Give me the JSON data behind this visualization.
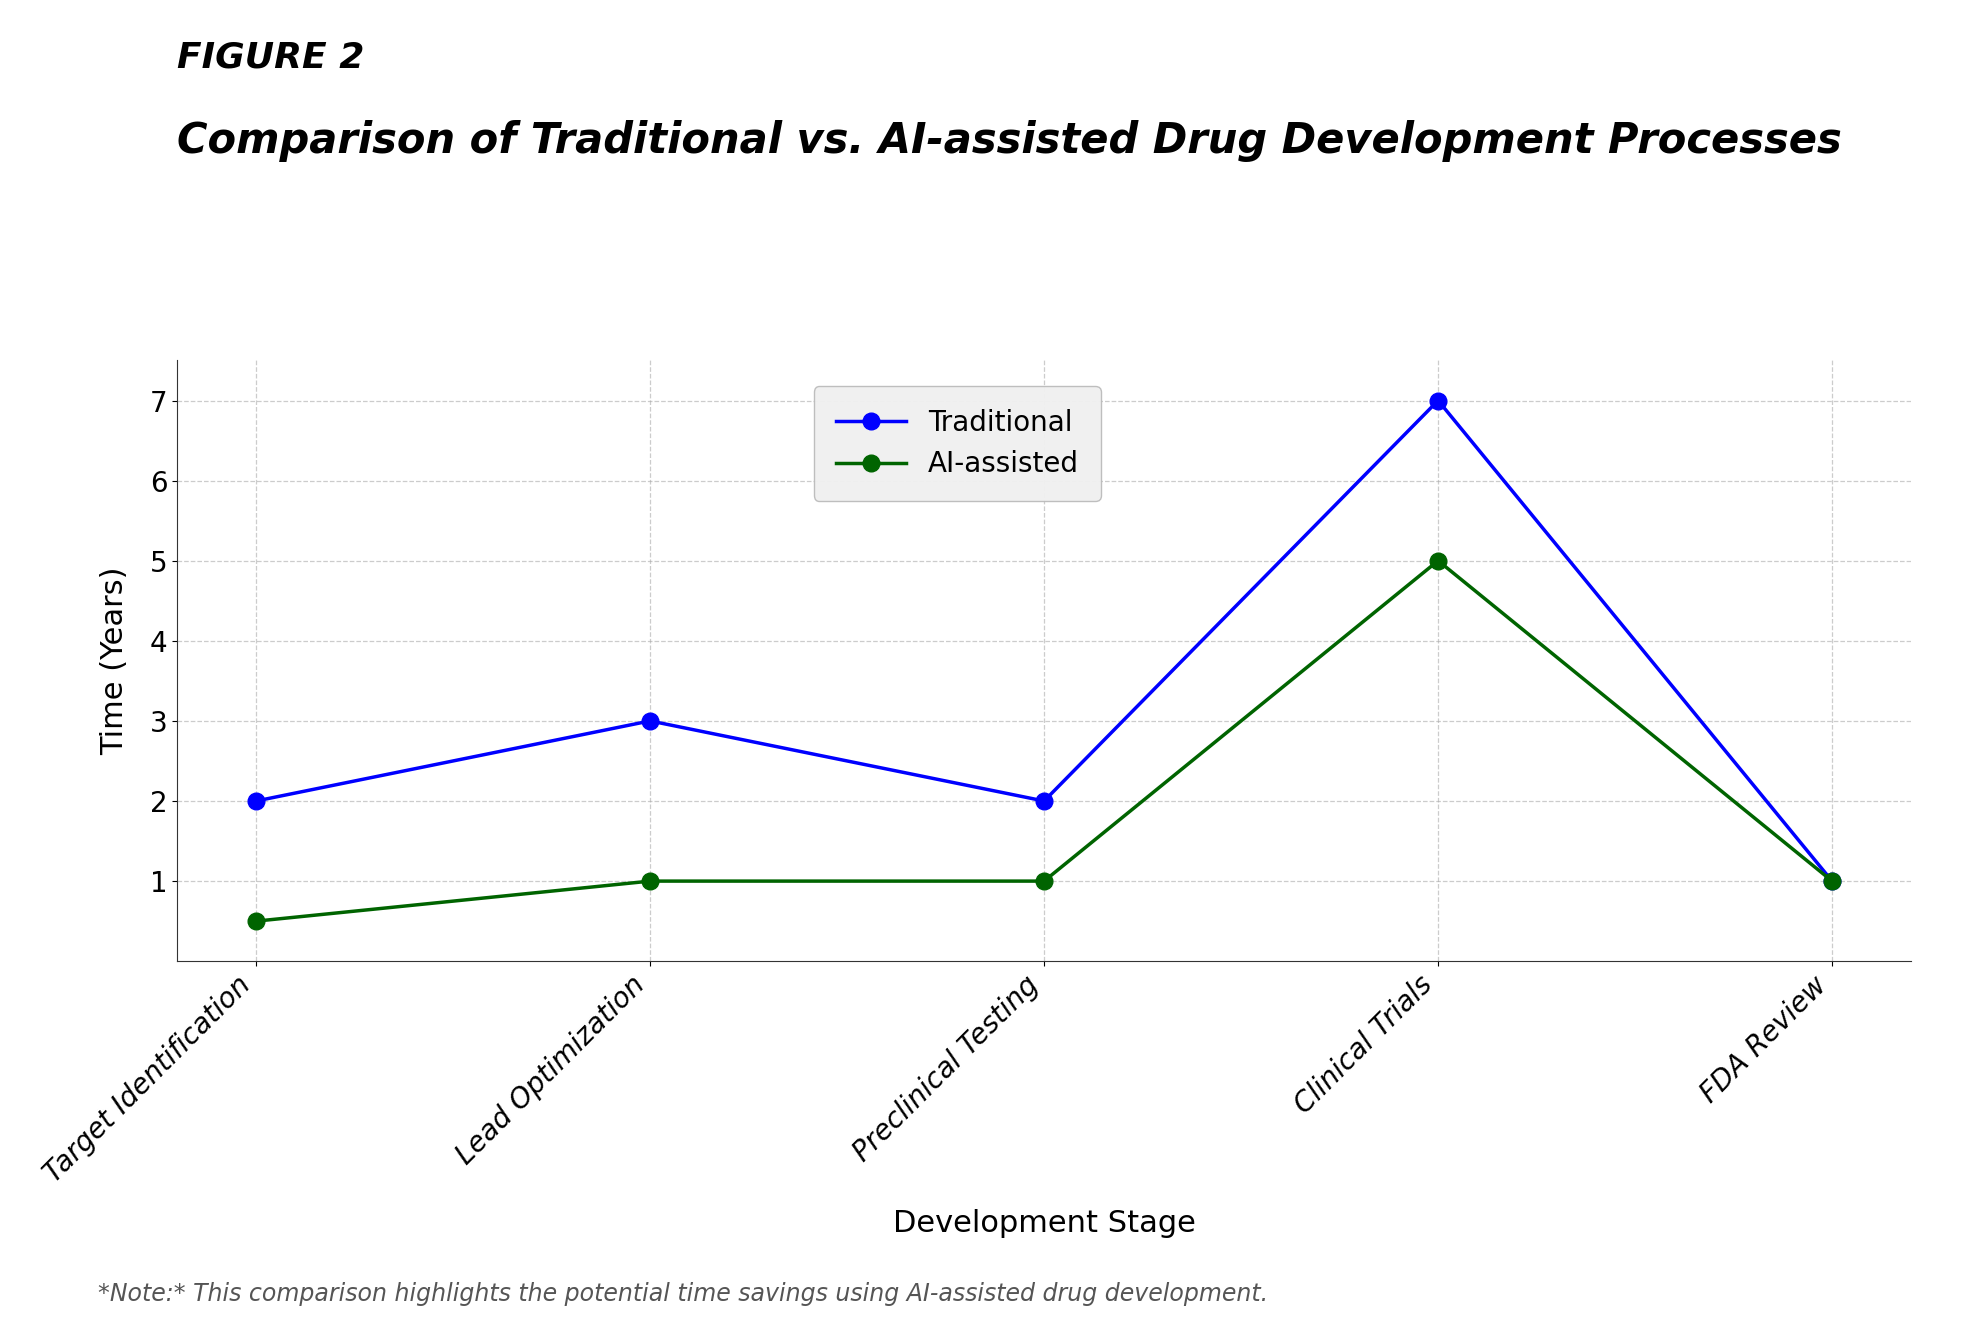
{
  "title_line1": "FIGURE 2",
  "title_line2": "Comparison of Traditional vs. AI-assisted Drug Development Processes",
  "xlabel": "Development Stage",
  "ylabel": "Time (Years)",
  "categories": [
    "Target Identification",
    "Lead Optimization",
    "Preclinical Testing",
    "Clinical Trials",
    "FDA Review"
  ],
  "traditional": [
    2,
    3,
    2,
    7,
    1
  ],
  "ai_assisted": [
    0.5,
    1,
    1,
    5,
    1
  ],
  "traditional_color": "#0000FF",
  "ai_color": "#006400",
  "traditional_label": "Traditional",
  "ai_label": "AI-assisted",
  "ylim_min": 0,
  "ylim_max": 7.5,
  "yticks": [
    1,
    2,
    3,
    4,
    5,
    6,
    7
  ],
  "note_text": "*Note:* This comparison highlights the potential time savings using AI-assisted drug development.",
  "background_color": "#ffffff",
  "grid_color": "#aaaaaa",
  "marker_size": 12,
  "line_width": 2.5,
  "title1_fontsize": 26,
  "title2_fontsize": 30,
  "label_fontsize": 22,
  "tick_fontsize": 20,
  "legend_fontsize": 20,
  "note_fontsize": 17
}
